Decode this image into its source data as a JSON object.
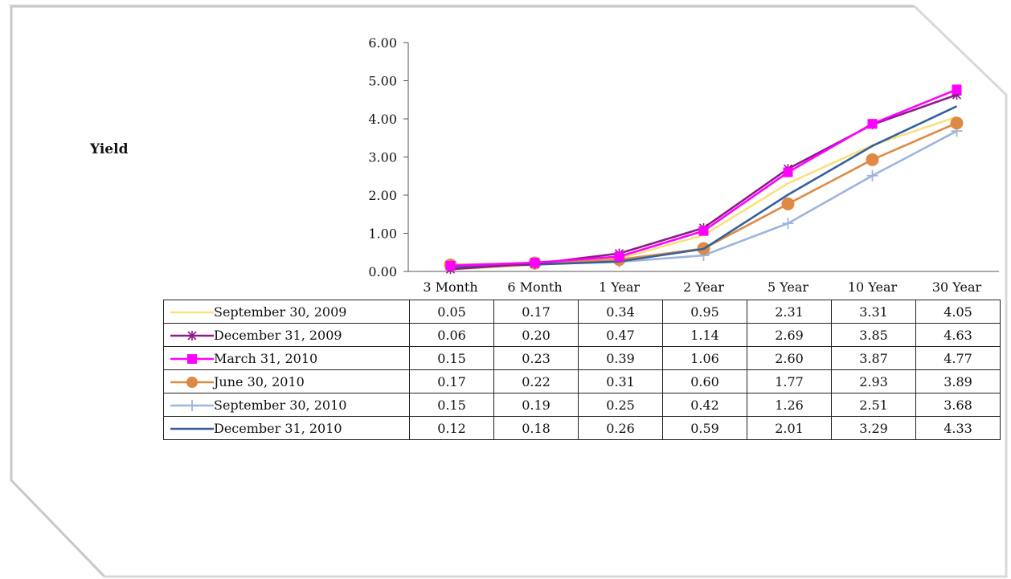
{
  "ylabel": "Yield",
  "colors": {
    "sep2009": "#fbe17c",
    "dec2009": "#8b1a8b",
    "mar2010": "#ff00ff",
    "jun2010": "#de8a46",
    "sep2010": "#9db4e0",
    "dec2010": "#34609e"
  },
  "chart_data": {
    "type": "line",
    "title": "",
    "xlabel": "",
    "ylabel": "Yield",
    "categories": [
      "3 Month",
      "6 Month",
      "1 Year",
      "2 Year",
      "5 Year",
      "10 Year",
      "30 Year"
    ],
    "ylim": [
      0,
      6
    ],
    "yticks": [
      "0.00",
      "1.00",
      "2.00",
      "3.00",
      "4.00",
      "5.00",
      "6.00"
    ],
    "grid": false,
    "legend": "data-table",
    "series": [
      {
        "name": "September 30, 2009",
        "color": "#fbe17c",
        "marker": "none",
        "values": [
          0.05,
          0.17,
          0.34,
          0.95,
          2.31,
          3.31,
          4.05
        ]
      },
      {
        "name": "December 31, 2009",
        "color": "#8b1a8b",
        "marker": "star",
        "values": [
          0.06,
          0.2,
          0.47,
          1.14,
          2.69,
          3.85,
          4.63
        ]
      },
      {
        "name": "March 31, 2010",
        "color": "#ff00ff",
        "marker": "square",
        "values": [
          0.15,
          0.23,
          0.39,
          1.06,
          2.6,
          3.87,
          4.77
        ]
      },
      {
        "name": "June 30, 2010",
        "color": "#de8a46",
        "marker": "circle",
        "values": [
          0.17,
          0.22,
          0.31,
          0.6,
          1.77,
          2.93,
          3.89
        ]
      },
      {
        "name": "September 30, 2010",
        "color": "#9db4e0",
        "marker": "plus",
        "values": [
          0.15,
          0.19,
          0.25,
          0.42,
          1.26,
          2.51,
          3.68
        ]
      },
      {
        "name": "December 31, 2010",
        "color": "#34609e",
        "marker": "none",
        "values": [
          0.12,
          0.18,
          0.26,
          0.59,
          2.01,
          3.29,
          4.33
        ]
      }
    ]
  },
  "table": {
    "rows": [
      {
        "label": "September 30, 2009",
        "values": [
          "0.05",
          "0.17",
          "0.34",
          "0.95",
          "2.31",
          "3.31",
          "4.05"
        ]
      },
      {
        "label": "December 31, 2009",
        "values": [
          "0.06",
          "0.20",
          "0.47",
          "1.14",
          "2.69",
          "3.85",
          "4.63"
        ]
      },
      {
        "label": "March 31, 2010",
        "values": [
          "0.15",
          "0.23",
          "0.39",
          "1.06",
          "2.60",
          "3.87",
          "4.77"
        ]
      },
      {
        "label": "June 30, 2010",
        "values": [
          "0.17",
          "0.22",
          "0.31",
          "0.60",
          "1.77",
          "2.93",
          "3.89"
        ]
      },
      {
        "label": "September 30, 2010",
        "values": [
          "0.15",
          "0.19",
          "0.25",
          "0.42",
          "1.26",
          "2.51",
          "3.68"
        ]
      },
      {
        "label": "December 31, 2010",
        "values": [
          "0.12",
          "0.18",
          "0.26",
          "0.59",
          "2.01",
          "3.29",
          "4.33"
        ]
      }
    ]
  }
}
